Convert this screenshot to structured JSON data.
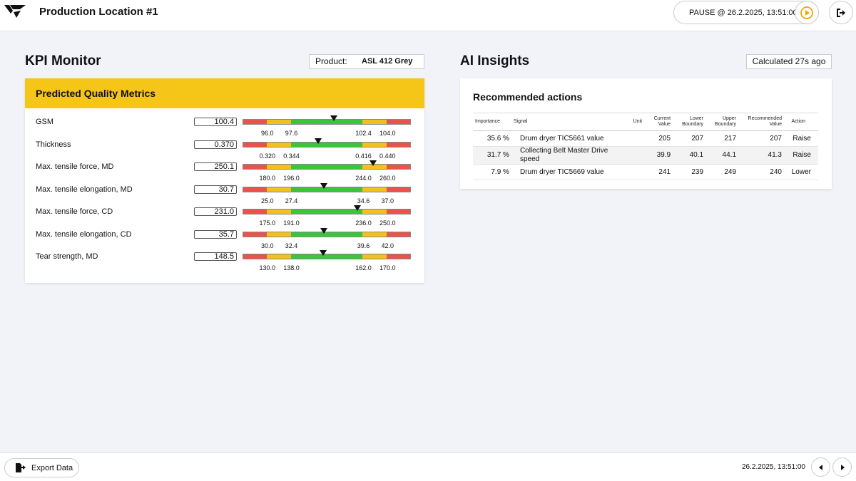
{
  "header": {
    "title": "Production Location #1",
    "pause_label": "PAUSE @ 26.2.2025, 13:51:00",
    "accent": "#f5a500"
  },
  "kpi": {
    "title": "KPI Monitor",
    "product_label": "Product:",
    "product_value": "ASL 412 Grey",
    "card_title": "Predicted Quality Metrics",
    "colors": {
      "red": "#e8544b",
      "yellow": "#f3c11b",
      "green": "#3dc43d",
      "header": "#f5c518"
    },
    "metrics": [
      {
        "label": "GSM",
        "value": "100.4",
        "marker": 0.54,
        "ticks": [
          "96.0",
          "97.6",
          "102.4",
          "104.0"
        ]
      },
      {
        "label": "Thickness",
        "value": "0.370",
        "marker": 0.445,
        "ticks": [
          "0.320",
          "0.344",
          "0.416",
          "0.440"
        ]
      },
      {
        "label": "Max. tensile force, MD",
        "value": "250.1",
        "marker": 0.77,
        "ticks": [
          "180.0",
          "196.0",
          "244.0",
          "260.0"
        ]
      },
      {
        "label": "Max. tensile elongation, MD",
        "value": "30.7",
        "marker": 0.48,
        "ticks": [
          "25.0",
          "27.4",
          "34.6",
          "37.0"
        ]
      },
      {
        "label": "Max. tensile force, CD",
        "value": "231.0",
        "marker": 0.68,
        "ticks": [
          "175.0",
          "191.0",
          "236.0",
          "250.0"
        ]
      },
      {
        "label": "Max. tensile elongation, CD",
        "value": "35.7",
        "marker": 0.48,
        "ticks": [
          "30.0",
          "32.4",
          "39.6",
          "42.0"
        ]
      },
      {
        "label": "Tear strength, MD",
        "value": "148.5",
        "marker": 0.475,
        "ticks": [
          "130.0",
          "138.0",
          "162.0",
          "170.0"
        ]
      }
    ]
  },
  "ai": {
    "title": "AI Insights",
    "calculated": "Calculated 27s ago",
    "card_title": "Recommended actions",
    "columns": [
      "Importance",
      "Signal",
      "Unit",
      "Current Value",
      "Lower Boundary",
      "Upper Boundary",
      "Recommended Value",
      "Action"
    ],
    "rows": [
      [
        "35.6 %",
        "Drum dryer TIC5661 value",
        "",
        "205",
        "207",
        "217",
        "207",
        "Raise"
      ],
      [
        "31.7 %",
        "Collecting Belt Master Drive speed",
        "",
        "39.9",
        "40.1",
        "44.1",
        "41.3",
        "Raise"
      ],
      [
        "7.9 %",
        "Drum dryer TIC5669 value",
        "",
        "241",
        "239",
        "249",
        "240",
        "Lower"
      ]
    ]
  },
  "footer": {
    "export_label": "Export Data",
    "timestamp": "26.2.2025, 13:51:00"
  },
  "icons": {
    "logo": "logo-icon",
    "play": "play-circle-icon",
    "logout": "logout-icon",
    "export": "export-icon",
    "prev": "chevron-left-icon",
    "next": "chevron-right-icon"
  }
}
